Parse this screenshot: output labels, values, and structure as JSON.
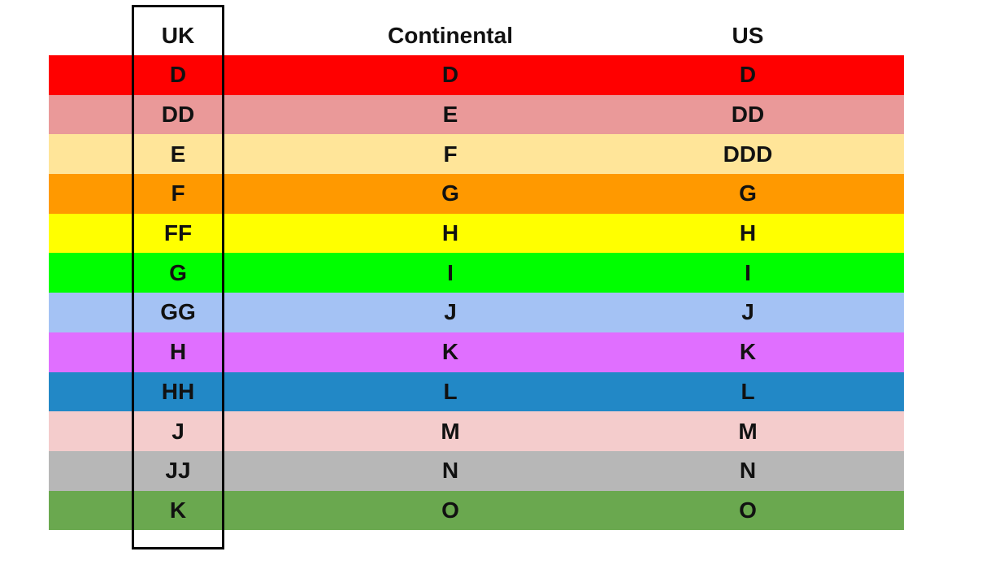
{
  "headers": [
    "UK",
    "Continental",
    "US"
  ],
  "rows": [
    {
      "uk": "D",
      "continental": "D",
      "us": "D",
      "color": "#ff0000"
    },
    {
      "uk": "DD",
      "continental": "E",
      "us": "DD",
      "color": "#ea9999"
    },
    {
      "uk": "E",
      "continental": "F",
      "us": "DDD",
      "color": "#ffe599"
    },
    {
      "uk": "F",
      "continental": "G",
      "us": "G",
      "color": "#ff9900"
    },
    {
      "uk": "FF",
      "continental": "H",
      "us": "H",
      "color": "#ffff00"
    },
    {
      "uk": "G",
      "continental": "I",
      "us": "I",
      "color": "#00ff00"
    },
    {
      "uk": "GG",
      "continental": "J",
      "us": "J",
      "color": "#a4c2f4"
    },
    {
      "uk": "H",
      "continental": "K",
      "us": "K",
      "color": "#e06fff"
    },
    {
      "uk": "HH",
      "continental": "L",
      "us": "L",
      "color": "#2288c6"
    },
    {
      "uk": "J",
      "continental": "M",
      "us": "M",
      "color": "#f4cccc"
    },
    {
      "uk": "JJ",
      "continental": "N",
      "us": "N",
      "color": "#b7b7b7"
    },
    {
      "uk": "K",
      "continental": "O",
      "us": "O",
      "color": "#6aa84f"
    }
  ],
  "highlighted_column": "UK"
}
